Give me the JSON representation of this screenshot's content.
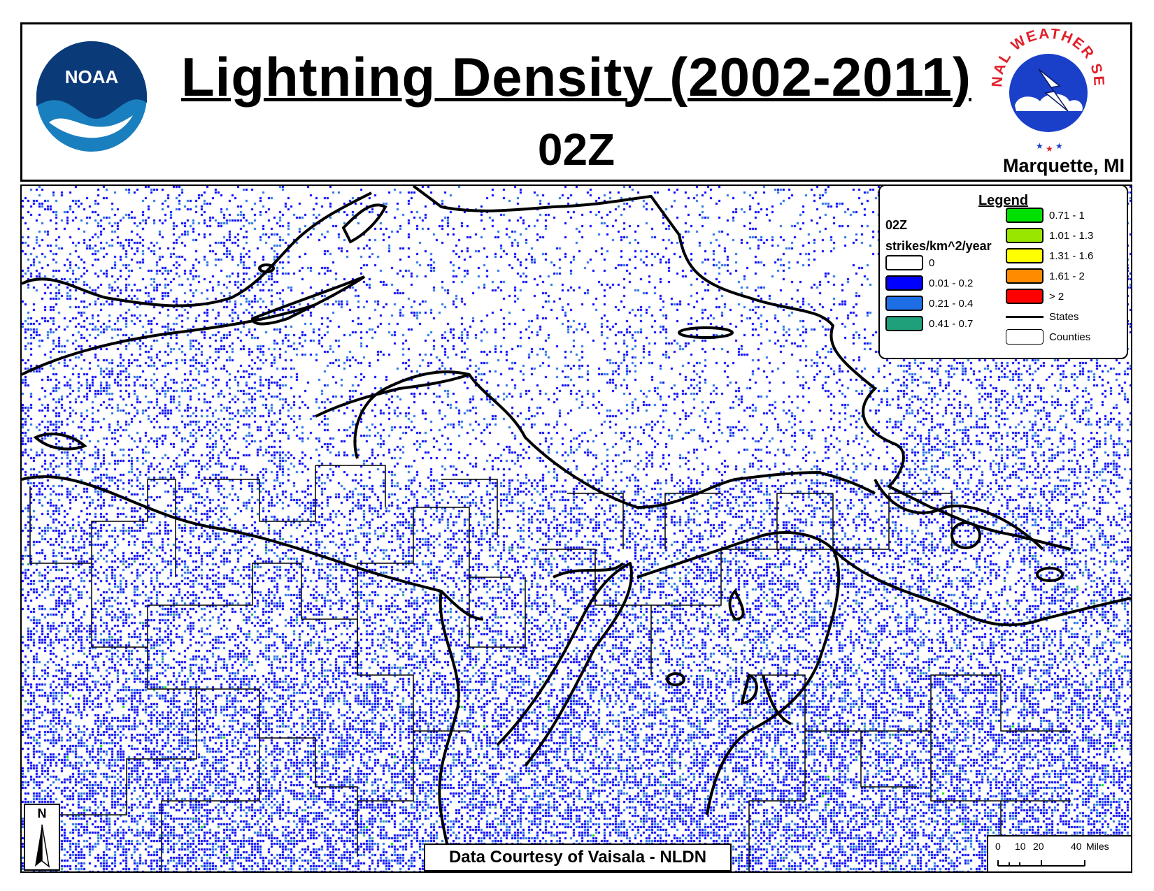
{
  "header": {
    "title": "Lightning Density (2002-2011)",
    "subtitle": "02Z",
    "office": "Marquette, MI"
  },
  "logos": {
    "noaa_text": "NOAA",
    "nws_text": "NATIONAL WEATHER SERVICE"
  },
  "legend": {
    "title": "Legend",
    "hour": "02Z",
    "unit": "strikes/km^2/year",
    "classes": [
      {
        "label": "0",
        "color": "#ffffff"
      },
      {
        "label": "0.01 - 0.2",
        "color": "#0000ff"
      },
      {
        "label": "0.21 - 0.4",
        "color": "#1e6ee6"
      },
      {
        "label": "0.41 - 0.7",
        "color": "#1f9f7a"
      },
      {
        "label": "0.71 - 1",
        "color": "#00e000"
      },
      {
        "label": "1.01 - 1.3",
        "color": "#99e600"
      },
      {
        "label": "1.31 - 1.6",
        "color": "#ffff00"
      },
      {
        "label": "1.61 - 2",
        "color": "#ff8c00"
      },
      {
        "label": "> 2",
        "color": "#ff0000"
      }
    ],
    "states_label": "States",
    "counties_label": "Counties"
  },
  "north_arrow": {
    "label": "N"
  },
  "credit": "Data Courtesy of Vaisala - NLDN",
  "scale": {
    "ticks": [
      "0",
      "10",
      "20",
      "40"
    ],
    "unit": "Miles"
  }
}
